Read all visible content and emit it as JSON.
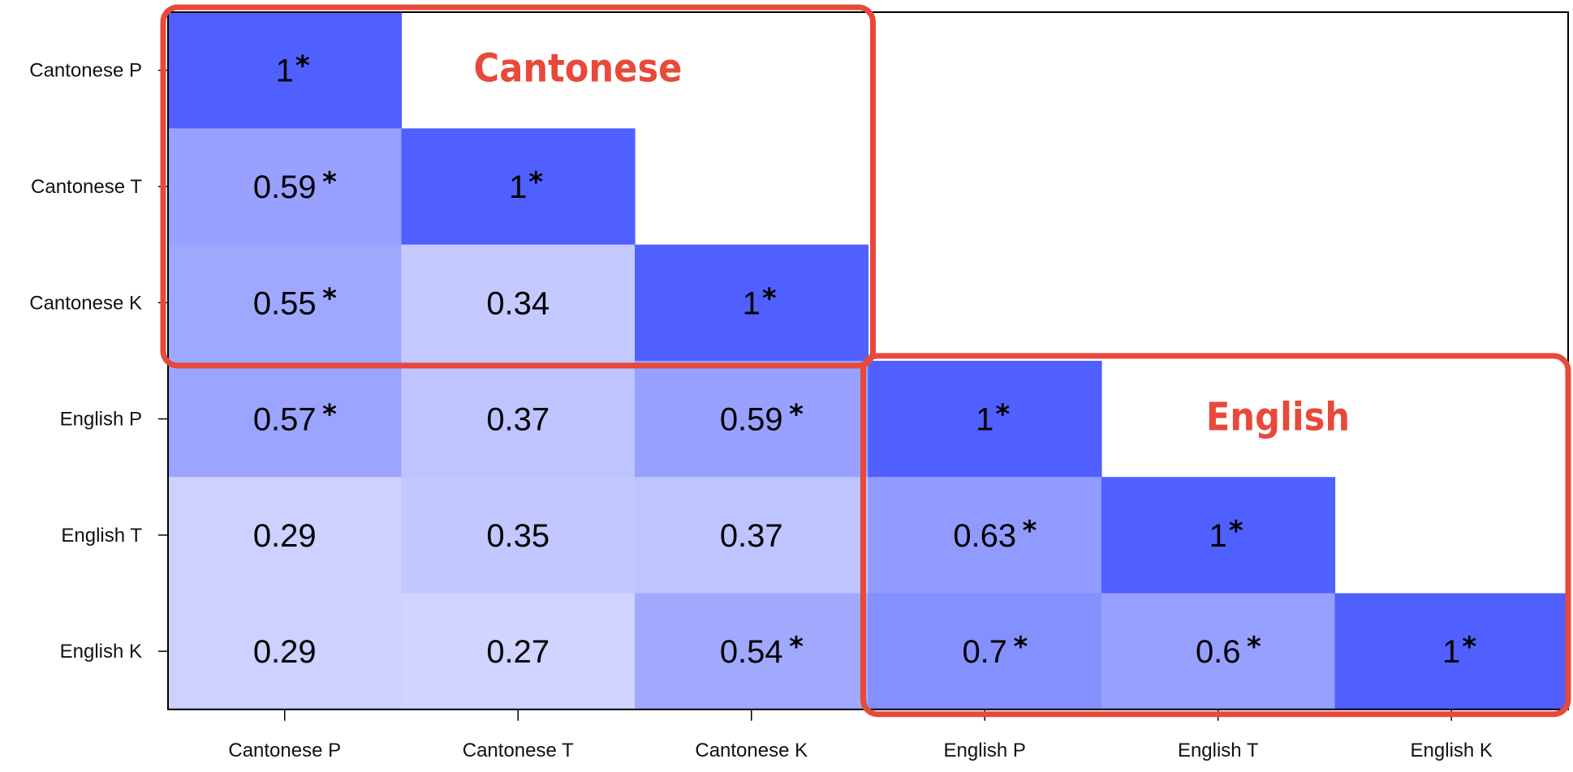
{
  "chart_data": {
    "type": "heatmap",
    "variables": [
      "Cantonese P",
      "Cantonese T",
      "Cantonese K",
      "English P",
      "English T",
      "English K"
    ],
    "matrix": [
      [
        1,
        null,
        null,
        null,
        null,
        null
      ],
      [
        0.59,
        1,
        null,
        null,
        null,
        null
      ],
      [
        0.55,
        0.34,
        1,
        null,
        null,
        null
      ],
      [
        0.57,
        0.37,
        0.59,
        1,
        null,
        null
      ],
      [
        0.29,
        0.35,
        0.37,
        0.63,
        1,
        null
      ],
      [
        0.29,
        0.27,
        0.54,
        0.7,
        0.6,
        1
      ]
    ],
    "display_values": [
      [
        "1",
        "",
        "",
        "",
        "",
        ""
      ],
      [
        "0.59",
        "1",
        "",
        "",
        "",
        ""
      ],
      [
        "0.55",
        "0.34",
        "1",
        "",
        "",
        ""
      ],
      [
        "0.57",
        "0.37",
        "0.59",
        "1",
        "",
        ""
      ],
      [
        "0.29",
        "0.35",
        "0.37",
        "0.63",
        "1",
        ""
      ],
      [
        "0.29",
        "0.27",
        "0.54",
        "0.7",
        "0.6",
        "1"
      ]
    ],
    "significant": [
      [
        true,
        false,
        false,
        false,
        false,
        false
      ],
      [
        true,
        true,
        false,
        false,
        false,
        false
      ],
      [
        true,
        false,
        true,
        false,
        false,
        false
      ],
      [
        true,
        false,
        true,
        true,
        false,
        false
      ],
      [
        false,
        false,
        false,
        true,
        true,
        false
      ],
      [
        false,
        false,
        true,
        true,
        true,
        true
      ]
    ],
    "significance_marker": "*",
    "color_scale": {
      "low": "#ffffff",
      "high": "#5060ff"
    },
    "highlight_groups": [
      {
        "label": "Cantonese",
        "from": 0,
        "to": 2,
        "color": "#e8493a"
      },
      {
        "label": "English",
        "from": 3,
        "to": 5,
        "color": "#e8493a"
      }
    ]
  }
}
